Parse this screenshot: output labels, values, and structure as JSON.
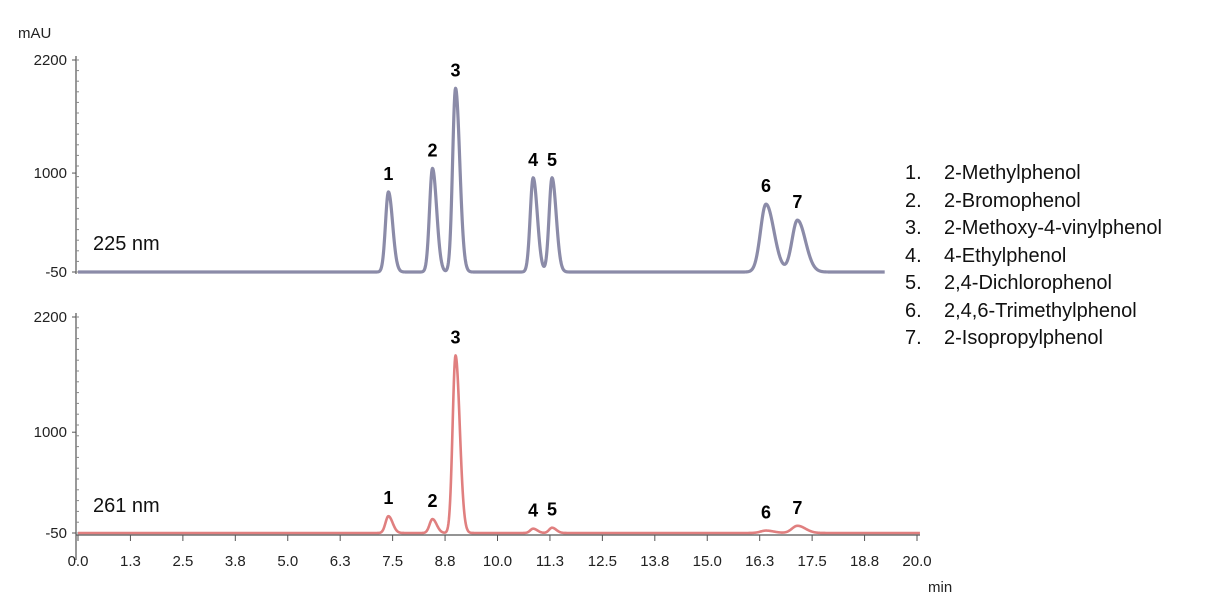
{
  "chart_data": {
    "type": "line",
    "y_unit": "mAU",
    "x_unit": "min",
    "x_ticks": [
      "0.0",
      "1.3",
      "2.5",
      "3.8",
      "5.0",
      "6.3",
      "7.5",
      "8.8",
      "10.0",
      "11.3",
      "12.5",
      "13.8",
      "15.0",
      "16.3",
      "17.5",
      "18.8",
      "20.0"
    ],
    "y_ticks": [
      "2200",
      "1000",
      "-50"
    ],
    "xlim": [
      0,
      20
    ],
    "ylim": [
      -50,
      2200
    ],
    "legend": {
      "placement": "right",
      "items": [
        {
          "num": "1.",
          "name": "2-Methylphenol"
        },
        {
          "num": "2.",
          "name": "2-Bromophenol"
        },
        {
          "num": "3.",
          "name": "2-Methoxy-4-vinylphenol"
        },
        {
          "num": "4.",
          "name": "4-Ethylphenol"
        },
        {
          "num": "5.",
          "name": "2,4-Dichlorophenol"
        },
        {
          "num": "6.",
          "name": "2,4,6-Trimethylphenol"
        },
        {
          "num": "7.",
          "name": "2-Isopropylphenol"
        }
      ]
    },
    "panels": [
      {
        "label": "225 nm",
        "color": "#8b8ba8",
        "baseline": -50,
        "peaks": [
          {
            "label": "1",
            "rt": 7.4,
            "height": 850
          },
          {
            "label": "2",
            "rt": 8.45,
            "height": 1100
          },
          {
            "label": "3",
            "rt": 9.0,
            "height": 1950
          },
          {
            "label": "4",
            "rt": 10.85,
            "height": 1000
          },
          {
            "label": "5",
            "rt": 11.3,
            "height": 1000
          },
          {
            "label": "6",
            "rt": 16.4,
            "height": 720
          },
          {
            "label": "7",
            "rt": 17.15,
            "height": 550
          }
        ]
      },
      {
        "label": "261 nm",
        "color": "#e07f7f",
        "baseline": -50,
        "peaks": [
          {
            "label": "1",
            "rt": 7.4,
            "height": 175
          },
          {
            "label": "2",
            "rt": 8.45,
            "height": 145
          },
          {
            "label": "3",
            "rt": 9.0,
            "height": 1850
          },
          {
            "label": "4",
            "rt": 10.85,
            "height": 45
          },
          {
            "label": "5",
            "rt": 11.3,
            "height": 55
          },
          {
            "label": "6",
            "rt": 16.4,
            "height": 25
          },
          {
            "label": "7",
            "rt": 17.15,
            "height": 75
          }
        ]
      }
    ]
  }
}
